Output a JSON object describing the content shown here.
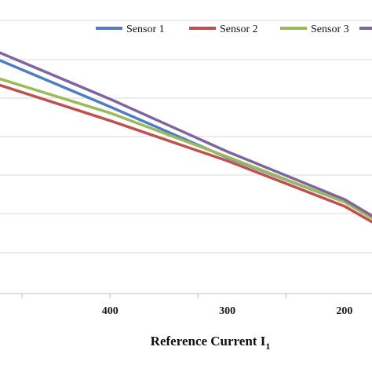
{
  "chart_data": {
    "type": "line",
    "title": "",
    "xlabel": "Reference Current I",
    "xlabel_subscript": "1",
    "ylabel": "",
    "x_reversed": true,
    "xlim": [
      176.5,
      493.9
    ],
    "ylim": [
      0,
      9
    ],
    "x_ticks": [
      400,
      300,
      200
    ],
    "x_tick_labels": [
      "400",
      "300",
      "200"
    ],
    "grid": "horizontal",
    "legend": "top-right",
    "series": [
      {
        "name": "Sensor 1",
        "color": "#4f7fc1",
        "x": [
          493.9,
          400,
          300,
          200,
          176.5
        ],
        "y": [
          7.55,
          6.05,
          4.4,
          2.97,
          2.5
        ]
      },
      {
        "name": "Sensor 2",
        "color": "#c0504d",
        "x": [
          493.9,
          400,
          300,
          200,
          176.5
        ],
        "y": [
          6.75,
          5.6,
          4.3,
          2.83,
          2.32
        ]
      },
      {
        "name": "Sensor 3",
        "color": "#9bbb59",
        "x": [
          493.9,
          400,
          300,
          200,
          176.5
        ],
        "y": [
          6.95,
          5.85,
          4.43,
          2.97,
          2.44
        ]
      },
      {
        "name": "",
        "color": "#8064a2",
        "x": [
          493.9,
          400,
          300,
          200,
          176.5
        ],
        "y": [
          7.8,
          6.3,
          4.6,
          3.05,
          2.52
        ]
      }
    ]
  }
}
